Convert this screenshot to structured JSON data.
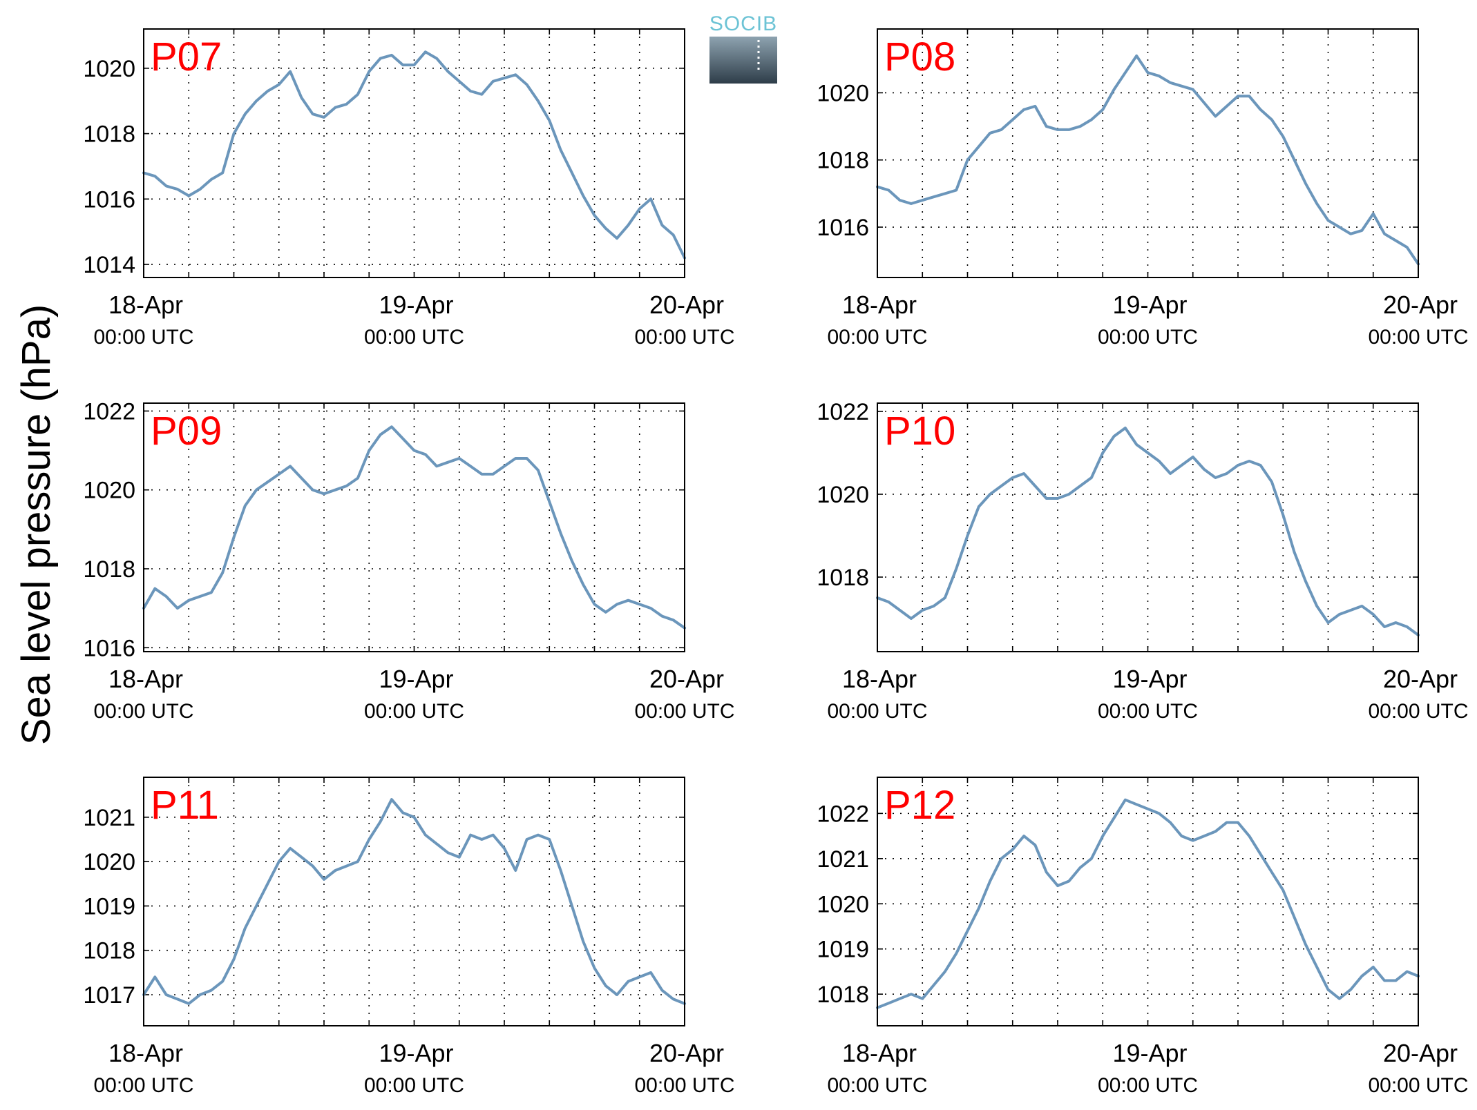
{
  "ylabel": "Sea level pressure (hPa)",
  "logo": {
    "text": "SOCIB",
    "text_color": "#6cc3d5",
    "top_color": "#8ea3b0",
    "bottom_color": "#2e3d49"
  },
  "colors": {
    "line": "#6b96bb",
    "label": "#ff0000",
    "grid": "#000000"
  },
  "chart_data": [
    {
      "type": "line",
      "title": "P07",
      "xlim": [
        0,
        48
      ],
      "ylim": [
        1013.6,
        1021.2
      ],
      "yticks": [
        1014,
        1016,
        1018,
        1020
      ],
      "grid": true,
      "xticks": [
        0,
        24,
        48
      ],
      "xticklabels": [
        [
          "18-Apr",
          "00:00 UTC"
        ],
        [
          "19-Apr",
          "00:00 UTC"
        ],
        [
          "20-Apr",
          "00:00 UTC"
        ]
      ],
      "x": [
        0,
        1,
        2,
        3,
        4,
        5,
        6,
        7,
        8,
        9,
        10,
        11,
        12,
        13,
        14,
        15,
        16,
        17,
        18,
        19,
        20,
        21,
        22,
        23,
        24,
        25,
        26,
        27,
        28,
        29,
        30,
        31,
        32,
        33,
        34,
        35,
        36,
        37,
        38,
        39,
        40,
        41,
        42,
        43,
        44,
        45,
        46,
        47,
        48
      ],
      "y": [
        1016.8,
        1016.7,
        1016.4,
        1016.3,
        1016.1,
        1016.3,
        1016.6,
        1016.8,
        1018.0,
        1018.6,
        1019.0,
        1019.3,
        1019.5,
        1019.9,
        1019.1,
        1018.6,
        1018.5,
        1018.8,
        1018.9,
        1019.2,
        1019.9,
        1020.3,
        1020.4,
        1020.1,
        1020.1,
        1020.5,
        1020.3,
        1019.9,
        1019.6,
        1019.3,
        1019.2,
        1019.6,
        1019.7,
        1019.8,
        1019.5,
        1019.0,
        1018.4,
        1017.5,
        1016.8,
        1016.1,
        1015.5,
        1015.1,
        1014.8,
        1015.2,
        1015.7,
        1016.0,
        1015.2,
        1014.9,
        1014.2
      ]
    },
    {
      "type": "line",
      "title": "P08",
      "xlim": [
        0,
        48
      ],
      "ylim": [
        1014.5,
        1021.9
      ],
      "yticks": [
        1016,
        1018,
        1020
      ],
      "grid": true,
      "xticks": [
        0,
        24,
        48
      ],
      "xticklabels": [
        [
          "18-Apr",
          "00:00 UTC"
        ],
        [
          "19-Apr",
          "00:00 UTC"
        ],
        [
          "20-Apr",
          "00:00 UTC"
        ]
      ],
      "x": [
        0,
        1,
        2,
        3,
        4,
        5,
        6,
        7,
        8,
        9,
        10,
        11,
        12,
        13,
        14,
        15,
        16,
        17,
        18,
        19,
        20,
        21,
        22,
        23,
        24,
        25,
        26,
        27,
        28,
        29,
        30,
        31,
        32,
        33,
        34,
        35,
        36,
        37,
        38,
        39,
        40,
        41,
        42,
        43,
        44,
        45,
        46,
        47,
        48
      ],
      "y": [
        1017.2,
        1017.1,
        1016.8,
        1016.7,
        1016.8,
        1016.9,
        1017.0,
        1017.1,
        1018.0,
        1018.4,
        1018.8,
        1018.9,
        1019.2,
        1019.5,
        1019.6,
        1019.0,
        1018.9,
        1018.9,
        1019.0,
        1019.2,
        1019.5,
        1020.1,
        1020.6,
        1021.1,
        1020.6,
        1020.5,
        1020.3,
        1020.2,
        1020.1,
        1019.7,
        1019.3,
        1019.6,
        1019.9,
        1019.9,
        1019.5,
        1019.2,
        1018.7,
        1018.0,
        1017.3,
        1016.7,
        1016.2,
        1016.0,
        1015.8,
        1015.9,
        1016.4,
        1015.8,
        1015.6,
        1015.4,
        1014.9
      ]
    },
    {
      "type": "line",
      "title": "P09",
      "xlim": [
        0,
        48
      ],
      "ylim": [
        1015.9,
        1022.2
      ],
      "yticks": [
        1016,
        1018,
        1020,
        1022
      ],
      "grid": true,
      "xticks": [
        0,
        24,
        48
      ],
      "xticklabels": [
        [
          "18-Apr",
          "00:00 UTC"
        ],
        [
          "19-Apr",
          "00:00 UTC"
        ],
        [
          "20-Apr",
          "00:00 UTC"
        ]
      ],
      "x": [
        0,
        1,
        2,
        3,
        4,
        5,
        6,
        7,
        8,
        9,
        10,
        11,
        12,
        13,
        14,
        15,
        16,
        17,
        18,
        19,
        20,
        21,
        22,
        23,
        24,
        25,
        26,
        27,
        28,
        29,
        30,
        31,
        32,
        33,
        34,
        35,
        36,
        37,
        38,
        39,
        40,
        41,
        42,
        43,
        44,
        45,
        46,
        47,
        48
      ],
      "y": [
        1017.0,
        1017.5,
        1017.3,
        1017.0,
        1017.2,
        1017.3,
        1017.4,
        1017.9,
        1018.8,
        1019.6,
        1020.0,
        1020.2,
        1020.4,
        1020.6,
        1020.3,
        1020.0,
        1019.9,
        1020.0,
        1020.1,
        1020.3,
        1021.0,
        1021.4,
        1021.6,
        1021.3,
        1021.0,
        1020.9,
        1020.6,
        1020.7,
        1020.8,
        1020.6,
        1020.4,
        1020.4,
        1020.6,
        1020.8,
        1020.8,
        1020.5,
        1019.7,
        1018.9,
        1018.2,
        1017.6,
        1017.1,
        1016.9,
        1017.1,
        1017.2,
        1017.1,
        1017.0,
        1016.8,
        1016.7,
        1016.5
      ]
    },
    {
      "type": "line",
      "title": "P10",
      "xlim": [
        0,
        48
      ],
      "ylim": [
        1016.2,
        1022.2
      ],
      "yticks": [
        1018,
        1020,
        1022
      ],
      "grid": true,
      "xticks": [
        0,
        24,
        48
      ],
      "xticklabels": [
        [
          "18-Apr",
          "00:00 UTC"
        ],
        [
          "19-Apr",
          "00:00 UTC"
        ],
        [
          "20-Apr",
          "00:00 UTC"
        ]
      ],
      "x": [
        0,
        1,
        2,
        3,
        4,
        5,
        6,
        7,
        8,
        9,
        10,
        11,
        12,
        13,
        14,
        15,
        16,
        17,
        18,
        19,
        20,
        21,
        22,
        23,
        24,
        25,
        26,
        27,
        28,
        29,
        30,
        31,
        32,
        33,
        34,
        35,
        36,
        37,
        38,
        39,
        40,
        41,
        42,
        43,
        44,
        45,
        46,
        47,
        48
      ],
      "y": [
        1017.5,
        1017.4,
        1017.2,
        1017.0,
        1017.2,
        1017.3,
        1017.5,
        1018.2,
        1019.0,
        1019.7,
        1020.0,
        1020.2,
        1020.4,
        1020.5,
        1020.2,
        1019.9,
        1019.9,
        1020.0,
        1020.2,
        1020.4,
        1021.0,
        1021.4,
        1021.6,
        1021.2,
        1021.0,
        1020.8,
        1020.5,
        1020.7,
        1020.9,
        1020.6,
        1020.4,
        1020.5,
        1020.7,
        1020.8,
        1020.7,
        1020.3,
        1019.5,
        1018.6,
        1017.9,
        1017.3,
        1016.9,
        1017.1,
        1017.2,
        1017.3,
        1017.1,
        1016.8,
        1016.9,
        1016.8,
        1016.6
      ]
    },
    {
      "type": "line",
      "title": "P11",
      "xlim": [
        0,
        48
      ],
      "ylim": [
        1016.3,
        1021.9
      ],
      "yticks": [
        1017,
        1018,
        1019,
        1020,
        1021
      ],
      "grid": true,
      "xticks": [
        0,
        24,
        48
      ],
      "xticklabels": [
        [
          "18-Apr",
          "00:00 UTC"
        ],
        [
          "19-Apr",
          "00:00 UTC"
        ],
        [
          "20-Apr",
          "00:00 UTC"
        ]
      ],
      "x": [
        0,
        1,
        2,
        3,
        4,
        5,
        6,
        7,
        8,
        9,
        10,
        11,
        12,
        13,
        14,
        15,
        16,
        17,
        18,
        19,
        20,
        21,
        22,
        23,
        24,
        25,
        26,
        27,
        28,
        29,
        30,
        31,
        32,
        33,
        34,
        35,
        36,
        37,
        38,
        39,
        40,
        41,
        42,
        43,
        44,
        45,
        46,
        47,
        48
      ],
      "y": [
        1017.0,
        1017.4,
        1017.0,
        1016.9,
        1016.8,
        1017.0,
        1017.1,
        1017.3,
        1017.8,
        1018.5,
        1019.0,
        1019.5,
        1020.0,
        1020.3,
        1020.1,
        1019.9,
        1019.6,
        1019.8,
        1019.9,
        1020.0,
        1020.5,
        1020.9,
        1021.4,
        1021.1,
        1021.0,
        1020.6,
        1020.4,
        1020.2,
        1020.1,
        1020.6,
        1020.5,
        1020.6,
        1020.3,
        1019.8,
        1020.5,
        1020.6,
        1020.5,
        1019.8,
        1019.0,
        1018.2,
        1017.6,
        1017.2,
        1017.0,
        1017.3,
        1017.4,
        1017.5,
        1017.1,
        1016.9,
        1016.8
      ]
    },
    {
      "type": "line",
      "title": "P12",
      "xlim": [
        0,
        48
      ],
      "ylim": [
        1017.3,
        1022.8
      ],
      "yticks": [
        1018,
        1019,
        1020,
        1021,
        1022
      ],
      "grid": true,
      "xticks": [
        0,
        24,
        48
      ],
      "xticklabels": [
        [
          "18-Apr",
          "00:00 UTC"
        ],
        [
          "19-Apr",
          "00:00 UTC"
        ],
        [
          "20-Apr",
          "00:00 UTC"
        ]
      ],
      "x": [
        0,
        1,
        2,
        3,
        4,
        5,
        6,
        7,
        8,
        9,
        10,
        11,
        12,
        13,
        14,
        15,
        16,
        17,
        18,
        19,
        20,
        21,
        22,
        23,
        24,
        25,
        26,
        27,
        28,
        29,
        30,
        31,
        32,
        33,
        34,
        35,
        36,
        37,
        38,
        39,
        40,
        41,
        42,
        43,
        44,
        45,
        46,
        47,
        48
      ],
      "y": [
        1017.7,
        1017.8,
        1017.9,
        1018.0,
        1017.9,
        1018.2,
        1018.5,
        1018.9,
        1019.4,
        1019.9,
        1020.5,
        1021.0,
        1021.2,
        1021.5,
        1021.3,
        1020.7,
        1020.4,
        1020.5,
        1020.8,
        1021.0,
        1021.5,
        1021.9,
        1022.3,
        1022.2,
        1022.1,
        1022.0,
        1021.8,
        1021.5,
        1021.4,
        1021.5,
        1021.6,
        1021.8,
        1021.8,
        1021.5,
        1021.1,
        1020.7,
        1020.3,
        1019.7,
        1019.1,
        1018.6,
        1018.1,
        1017.9,
        1018.1,
        1018.4,
        1018.6,
        1018.3,
        1018.3,
        1018.5,
        1018.4
      ]
    }
  ]
}
